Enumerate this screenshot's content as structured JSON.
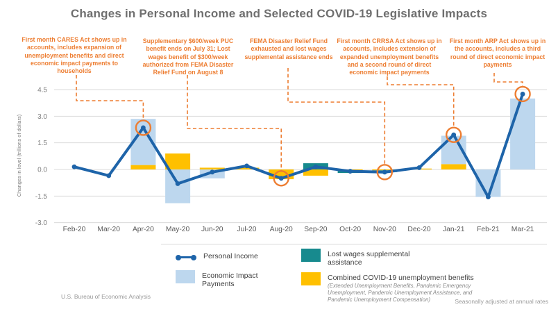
{
  "title": "Changes in Personal Income and Selected COVID-19 Legislative Impacts",
  "footer": {
    "source": "U.S. Bureau of Economic Analysis",
    "note": "Seasonally adjusted at annual rates"
  },
  "legend": {
    "personal_income": "Personal Income",
    "eip": "Economic Impact Payments",
    "lost_wages": "Lost wages supplemental assistance",
    "combined_ui": "Combined COVID-19 unemployment benefits",
    "combined_ui_sub": "(Extended Unemployment Benefits, Pandemic Emergency Unemployment, Pandemic Unemployment Assistance, and Pandemic Unemployment Compensation)"
  },
  "annotations": [
    {
      "text": "First month CARES Act shows up in accounts, includes expansion of unemployment benefits and direct economic impact payments to households",
      "target_month": "Apr-20"
    },
    {
      "text": "Supplementary $600/week PUC benefit ends on July 31; Lost wages benefit of $300/week authorized from FEMA Disaster Relief Fund on August 8",
      "target_month": "Aug-20"
    },
    {
      "text": "FEMA Disaster Relief Fund exhausted and lost wages supplemental assistance ends",
      "target_month": "Nov-20"
    },
    {
      "text": "First month CRRSA Act shows up in accounts, includes extension of expanded unemployment benefits and a second round of direct economic impact payments",
      "target_month": "Jan-21"
    },
    {
      "text": "First month ARP Act shows up in the accounts, includes a third round of direct economic impact payments",
      "target_month": "Mar-21"
    }
  ],
  "chart_data": {
    "type": "bar+line",
    "title": "Changes in Personal Income and Selected COVID-19 Legislative Impacts",
    "ylabel": "Changes in level (trillions of dollars)",
    "xlabel": "",
    "yticks": [
      4.5,
      3.0,
      1.5,
      0.0,
      -1.5,
      -3.0
    ],
    "ylim": [
      -3.0,
      4.8
    ],
    "grid": true,
    "legend_position": "bottom",
    "categories": [
      "Feb-20",
      "Mar-20",
      "Apr-20",
      "May-20",
      "Jun-20",
      "Jul-20",
      "Aug-20",
      "Sep-20",
      "Oct-20",
      "Nov-20",
      "Dec-20",
      "Jan-21",
      "Feb-21",
      "Mar-21"
    ],
    "series": [
      {
        "name": "Personal Income",
        "type": "line",
        "color": "#1E64A9",
        "values": [
          0.15,
          -0.35,
          2.35,
          -0.8,
          -0.15,
          0.2,
          -0.5,
          0.15,
          -0.1,
          -0.15,
          0.1,
          1.95,
          -1.55,
          4.25
        ]
      },
      {
        "name": "Combined COVID-19 unemployment benefits",
        "type": "bar",
        "color": "#FFC000",
        "values": [
          0,
          0,
          0.25,
          0.9,
          0.1,
          0.1,
          -0.55,
          -0.35,
          -0.05,
          -0.05,
          0.05,
          0.3,
          0,
          0
        ]
      },
      {
        "name": "Lost wages supplemental assistance",
        "type": "bar",
        "color": "#178A8E",
        "values": [
          0,
          0,
          0,
          0,
          0,
          0,
          0,
          0.35,
          -0.15,
          -0.1,
          0,
          0,
          0,
          0
        ]
      },
      {
        "name": "Economic Impact Payments",
        "type": "bar",
        "color": "#BDD7EE",
        "values": [
          0,
          0,
          2.6,
          -1.9,
          -0.5,
          0,
          0,
          0,
          0,
          0,
          0,
          1.6,
          -1.55,
          4.0
        ]
      }
    ],
    "highlighted_months": [
      "Apr-20",
      "Aug-20",
      "Nov-20",
      "Jan-21",
      "Mar-21"
    ],
    "highlight_color": "#ED7D31"
  }
}
